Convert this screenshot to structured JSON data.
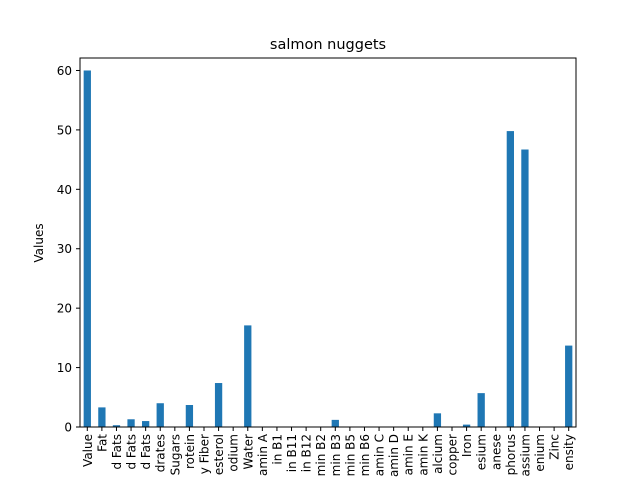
{
  "chart_data": {
    "type": "bar",
    "title": "salmon nuggets",
    "xlabel": "",
    "ylabel": "Values",
    "ylim": [
      0,
      62.1
    ],
    "yticks": [
      0,
      10,
      20,
      30,
      40,
      50,
      60
    ],
    "grid": false,
    "legend": "none",
    "bar_color": "#1f77b4",
    "categories": [
      "Value",
      "Fat",
      "d Fats",
      "d Fats",
      "d Fats",
      "drates",
      "Sugars",
      "rotein",
      "y Fiber",
      "esterol",
      "odium",
      "Water",
      "amin A",
      "in B1",
      "in B11",
      "in B12",
      "min B2",
      "min B3",
      "min B5",
      "min B6",
      "amin C",
      "amin D",
      "amin E",
      "amin K",
      "alcium",
      "copper",
      "Iron",
      "esium",
      "anese",
      "phorus",
      "assium",
      "enium",
      "Zinc",
      "ensity"
    ],
    "values": [
      60.0,
      3.3,
      0.3,
      1.3,
      1.0,
      4.0,
      0.0,
      3.7,
      0.0,
      7.4,
      0.0,
      17.1,
      0.0,
      0.0,
      0.0,
      0.0,
      0.0,
      1.2,
      0.0,
      0.0,
      0.0,
      0.0,
      0.0,
      0.0,
      2.3,
      0.0,
      0.4,
      5.7,
      0.0,
      49.8,
      46.7,
      0.0,
      0.0,
      13.7
    ]
  }
}
